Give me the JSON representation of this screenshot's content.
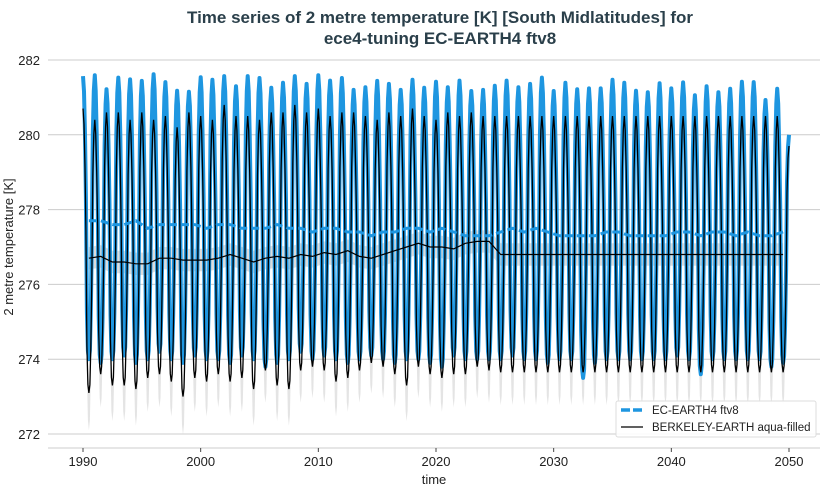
{
  "chart_data": {
    "type": "line",
    "title_line1": "Time series of 2 metre temperature [K] [South Midlatitudes] for",
    "title_line2": "ece4-tuning EC-EARTH4 ftv8",
    "xlabel": "time",
    "ylabel": "2 metre temperature [K]",
    "xlim": [
      1987,
      2053
    ],
    "ylim": [
      271.6,
      282.3
    ],
    "xticks": [
      "1990",
      "2000",
      "2010",
      "2020",
      "2030",
      "2040",
      "2050"
    ],
    "yticks": [
      "272",
      "274",
      "276",
      "278",
      "280",
      "282"
    ],
    "grid": "horizontal",
    "legend_position": "bottom-right",
    "years": [
      1990,
      2049
    ],
    "series": [
      {
        "name": "EC-EARTH4 ftv8",
        "color": "#1e96e0",
        "style": "dashed",
        "annual_max": [
          281.57,
          281.59,
          281.22,
          281.53,
          281.48,
          281.44,
          281.62,
          281.41,
          281.18,
          281.15,
          281.54,
          281.47,
          281.57,
          281.3,
          281.57,
          281.52,
          281.26,
          281.39,
          281.57,
          281.36,
          281.59,
          281.45,
          281.52,
          281.2,
          281.27,
          281.44,
          281.36,
          281.2,
          281.47,
          281.26,
          281.42,
          281.27,
          281.45,
          281.17,
          281.2,
          281.31,
          281.45,
          281.27,
          281.36,
          281.53,
          281.17,
          281.39,
          281.22,
          281.24,
          281.24,
          281.47,
          281.39,
          281.18,
          281.14,
          281.38,
          281.24,
          281.4,
          281.06,
          281.3,
          281.14,
          281.23,
          281.42,
          281.41,
          280.93,
          281.23
        ],
        "annual_min": [
          274.0,
          273.9,
          274.0,
          274.1,
          273.9,
          274.0,
          274.2,
          274.0,
          273.9,
          274.1,
          274.0,
          274.0,
          273.9,
          274.1,
          274.0,
          273.8,
          273.9,
          274.0,
          274.2,
          274.0,
          274.1,
          274.0,
          273.9,
          274.0,
          274.1,
          274.0,
          273.9,
          274.0,
          274.0,
          273.9,
          273.8,
          274.1,
          274.0,
          274.0,
          274.0,
          274.0,
          274.1,
          274.0,
          274.0,
          273.9,
          274.0,
          274.0,
          273.5,
          273.9,
          274.0,
          274.0,
          274.0,
          274.0,
          274.0,
          274.0,
          274.1,
          274.0,
          273.6,
          274.0,
          274.0,
          274.0,
          274.0,
          274.0,
          273.8,
          273.9
        ],
        "annual_mean": [
          277.7,
          277.7,
          277.6,
          277.6,
          277.7,
          277.5,
          277.6,
          277.6,
          277.6,
          277.6,
          277.5,
          277.6,
          277.6,
          277.5,
          277.5,
          277.5,
          277.6,
          277.5,
          277.5,
          277.4,
          277.5,
          277.5,
          277.4,
          277.4,
          277.3,
          277.4,
          277.4,
          277.5,
          277.5,
          277.4,
          277.5,
          277.4,
          277.3,
          277.3,
          277.3,
          277.4,
          277.5,
          277.4,
          277.5,
          277.4,
          277.3,
          277.3,
          277.3,
          277.3,
          277.4,
          277.4,
          277.3,
          277.3,
          277.3,
          277.3,
          277.4,
          277.4,
          277.3,
          277.4,
          277.4,
          277.3,
          277.4,
          277.3,
          277.3,
          277.4
        ],
        "end_value": 280.0
      },
      {
        "name": "BERKELEY-EARTH aqua-filled",
        "color": "#000000",
        "style": "solid",
        "annual_max": [
          280.7,
          280.4,
          280.6,
          280.6,
          280.4,
          280.6,
          280.4,
          280.5,
          280.2,
          280.6,
          280.5,
          280.4,
          280.8,
          280.5,
          280.5,
          280.4,
          280.6,
          280.6,
          280.8,
          280.6,
          280.7,
          280.5,
          280.6,
          280.6,
          280.5,
          280.4,
          280.6,
          280.5,
          280.7,
          280.5,
          280.4,
          280.6,
          280.5,
          280.6,
          280.5,
          280.5,
          280.5,
          280.5,
          280.5,
          280.5,
          280.5,
          280.5,
          280.5,
          280.5,
          280.5,
          280.5,
          280.5,
          280.5,
          280.5,
          280.5,
          280.5,
          280.5,
          280.5,
          280.5,
          280.5,
          280.5,
          280.5,
          280.5,
          280.5,
          280.5
        ],
        "annual_min": [
          273.1,
          273.6,
          273.3,
          273.3,
          273.2,
          273.5,
          273.6,
          273.4,
          273.0,
          273.5,
          273.4,
          273.6,
          273.4,
          273.5,
          273.2,
          273.7,
          273.3,
          273.2,
          273.7,
          273.8,
          273.7,
          273.4,
          273.5,
          273.7,
          273.9,
          273.8,
          273.6,
          273.3,
          273.8,
          273.6,
          273.5,
          273.6,
          273.6,
          273.8,
          273.7,
          273.65,
          273.65,
          273.65,
          273.65,
          273.65,
          273.65,
          273.65,
          273.65,
          273.65,
          273.65,
          273.65,
          273.65,
          273.65,
          273.65,
          273.65,
          273.65,
          273.65,
          273.65,
          273.65,
          273.65,
          273.65,
          273.65,
          273.65,
          273.65,
          273.65
        ],
        "annual_mean": [
          276.7,
          276.75,
          276.6,
          276.6,
          276.55,
          276.55,
          276.7,
          276.7,
          276.65,
          276.65,
          276.65,
          276.7,
          276.8,
          276.7,
          276.6,
          276.7,
          276.75,
          276.7,
          276.8,
          276.75,
          276.85,
          276.8,
          276.9,
          276.75,
          276.7,
          276.8,
          276.9,
          277.0,
          277.1,
          277.0,
          277.0,
          276.95,
          277.1,
          277.15,
          277.15,
          276.8,
          276.8,
          276.8,
          276.8,
          276.8,
          276.8,
          276.8,
          276.8,
          276.8,
          276.8,
          276.8,
          276.8,
          276.8,
          276.8,
          276.8,
          276.8,
          276.8,
          276.8,
          276.8,
          276.8,
          276.8,
          276.8,
          276.8,
          276.8,
          276.8
        ],
        "end_value": 279.7
      }
    ]
  }
}
